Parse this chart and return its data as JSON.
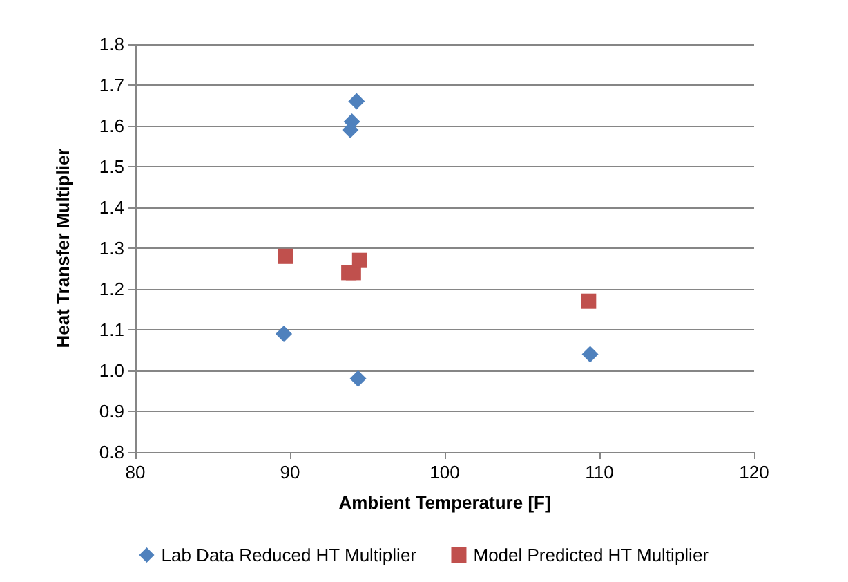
{
  "chart_data": {
    "type": "scatter",
    "xlabel": "Ambient Temperature [F]",
    "ylabel": "Heat Transfer Multiplier",
    "series": [
      {
        "name": "Lab Data Reduced HT Multiplier",
        "color": "#4f81bd",
        "marker": "diamond",
        "x": [
          89.6,
          94.3,
          94.0,
          93.9,
          94.4,
          109.4
        ],
        "values": [
          1.09,
          1.66,
          1.61,
          1.59,
          0.98,
          1.04
        ]
      },
      {
        "name": "Model Predicted HT Multiplier",
        "color": "#c0504d",
        "marker": "square",
        "x": [
          89.7,
          93.8,
          94.1,
          94.5,
          109.3
        ],
        "values": [
          1.28,
          1.24,
          1.24,
          1.27,
          1.17
        ]
      }
    ],
    "xlim": [
      80,
      120
    ],
    "xticks": [
      80,
      90,
      100,
      110,
      120
    ],
    "ylim": [
      0.8,
      1.8
    ],
    "yticks": [
      0.8,
      0.9,
      {
        "value": 1,
        "label": "1.0"
      },
      1.1,
      1.2,
      1.3,
      1.4,
      1.5,
      1.6,
      1.7,
      1.8
    ],
    "grid": "y",
    "legend": "bottom"
  }
}
